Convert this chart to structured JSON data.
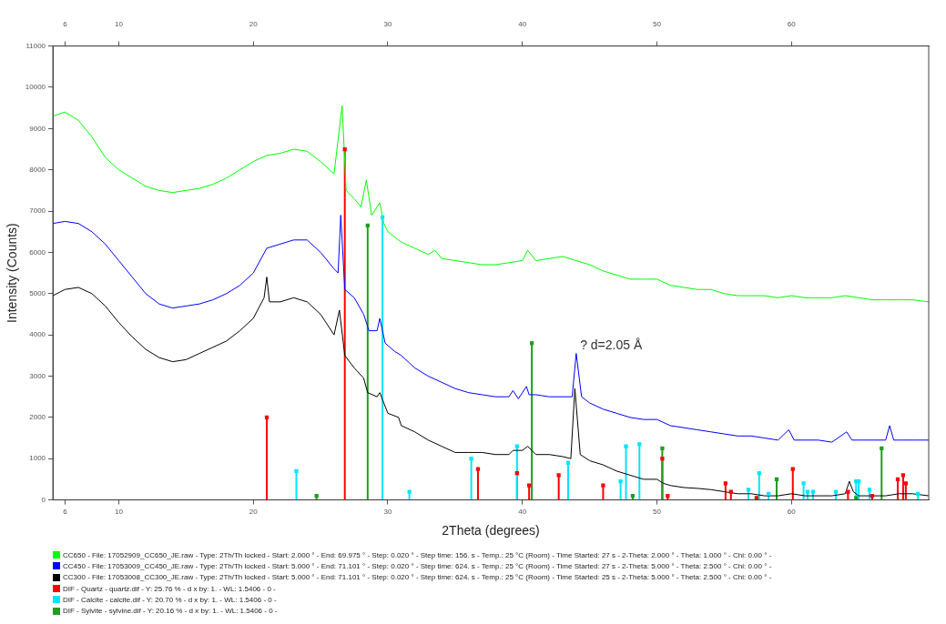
{
  "chart_data": {
    "type": "line",
    "xlabel": "2Theta (degrees)",
    "ylabel": "Intensity (Counts)",
    "xlim": [
      5.1,
      70.2
    ],
    "xticks": [
      6,
      10,
      20,
      30,
      40,
      50,
      60
    ],
    "x2lim": [
      5.1,
      70.2
    ],
    "x2ticks": [
      6,
      10,
      20,
      30,
      40,
      50,
      60
    ],
    "ylim": [
      0,
      11000
    ],
    "yticks": [
      0,
      1000,
      2000,
      3000,
      4000,
      5000,
      6000,
      7000,
      8000,
      9000,
      10000,
      11000
    ],
    "legend": "bottom",
    "annotations": [
      "? d=2.05 Å"
    ],
    "series": [
      {
        "name": "CC650 - File: 17052909_CC650_JE.raw - Type: 2Th/Th locked - Start: 2.000 ° - End: 69.975 ° - Step: 0.020 ° - Step time: 156. s - Temp.: 25 °C (Room) - Time Started: 27 s - 2-Theta: 2.000 ° - Theta: 1.000 ° - Chi: 0.00 ° -",
        "color": "#00ff00",
        "x": [
          5.1,
          6,
          7,
          8,
          9,
          10,
          11,
          12,
          13,
          14,
          15,
          16,
          17,
          18,
          19,
          20,
          21,
          22,
          23,
          24,
          25,
          26,
          26.6,
          26.9,
          27.5,
          28,
          28.4,
          28.8,
          29.4,
          29.7,
          30,
          31,
          32,
          33,
          33.5,
          34,
          35,
          36,
          37,
          38,
          39,
          40,
          40.4,
          41,
          42,
          43,
          44,
          45,
          46,
          47,
          48,
          49,
          50,
          51,
          52,
          53,
          54,
          55,
          56,
          57,
          58,
          59,
          60,
          61,
          62,
          63,
          64,
          65,
          66,
          67,
          68,
          69,
          70.2
        ],
        "values": [
          9300,
          9400,
          9200,
          8800,
          8300,
          8000,
          7800,
          7600,
          7500,
          7450,
          7500,
          7550,
          7650,
          7800,
          8000,
          8200,
          8350,
          8400,
          8500,
          8450,
          8200,
          7900,
          9550,
          7500,
          7300,
          7100,
          7750,
          6900,
          7200,
          6700,
          6500,
          6250,
          6100,
          5950,
          6050,
          5850,
          5800,
          5750,
          5700,
          5700,
          5750,
          5800,
          6050,
          5800,
          5850,
          5900,
          5800,
          5700,
          5550,
          5450,
          5350,
          5350,
          5350,
          5200,
          5150,
          5100,
          5100,
          5000,
          4950,
          4950,
          4950,
          4900,
          4950,
          4900,
          4900,
          4900,
          4950,
          4900,
          4850,
          4850,
          4850,
          4850,
          4800
        ]
      },
      {
        "name": "CC450 - File: 17053009_CC450_JE.raw - Type: 2Th/Th locked - Start: 5.000 ° - End: 71.101 ° - Step: 0.020 ° - Step time: 624. s - Temp.: 25 °C (Room) - Time Started: 27 s - 2-Theta: 5.000 ° - Theta: 2.500 ° - Chi: 0.00 ° -",
        "color": "#0000ff",
        "x": [
          5.1,
          6,
          7,
          8,
          9,
          10,
          11,
          12,
          13,
          14,
          15,
          16,
          17,
          18,
          19,
          20,
          21,
          22,
          23,
          24,
          25,
          26,
          26.3,
          26.5,
          26.8,
          27.5,
          28.2,
          28.6,
          29.2,
          29.4,
          29.8,
          30.5,
          31,
          32,
          33,
          34,
          35,
          36,
          37,
          38,
          39,
          39.3,
          39.7,
          40.3,
          40.5,
          41,
          42,
          43,
          43.7,
          44,
          44.4,
          45,
          46,
          47,
          48,
          49,
          50,
          51,
          52,
          53,
          54,
          55,
          56,
          57,
          58,
          59,
          59.8,
          60.2,
          61,
          62,
          63,
          64.1,
          64.5,
          65,
          66,
          67,
          67.3,
          67.6,
          68,
          69,
          70.2
        ],
        "values": [
          6700,
          6750,
          6700,
          6500,
          6200,
          5800,
          5400,
          5000,
          4750,
          4650,
          4700,
          4750,
          4850,
          5000,
          5200,
          5500,
          6100,
          6200,
          6300,
          6300,
          6000,
          5600,
          5500,
          6900,
          5100,
          4900,
          4500,
          4100,
          4100,
          4400,
          3800,
          3600,
          3500,
          3200,
          3000,
          2850,
          2700,
          2600,
          2550,
          2500,
          2500,
          2650,
          2450,
          2750,
          2550,
          2550,
          2500,
          2500,
          2500,
          3550,
          2500,
          2350,
          2200,
          2100,
          2000,
          1950,
          1950,
          1800,
          1750,
          1700,
          1650,
          1600,
          1550,
          1550,
          1500,
          1450,
          1700,
          1450,
          1450,
          1450,
          1400,
          1650,
          1450,
          1450,
          1450,
          1450,
          1800,
          1450,
          1450,
          1450,
          1450
        ]
      },
      {
        "name": "CC300 - File: 17053008_CC300_JE.raw - Type: 2Th/Th locked - Start: 5.000 ° - End: 71.101 ° - Step: 0.020 ° - Step time: 624. s - Temp.: 25 °C (Room) - Time Started: 25 s - 2-Theta: 5.000 ° - Theta: 2.500 ° - Chi: 0.00 ° -",
        "color": "#000000",
        "x": [
          5.1,
          6,
          7,
          8,
          9,
          10,
          11,
          12,
          13,
          14,
          15,
          16,
          17,
          18,
          19,
          20,
          20.8,
          21,
          21.2,
          22,
          23,
          24,
          25,
          26,
          26.4,
          26.8,
          27.5,
          28.2,
          28.5,
          29.2,
          29.4,
          30,
          30.8,
          31,
          32,
          33,
          34,
          35,
          36,
          37,
          38,
          39,
          39.3,
          40,
          40.4,
          41,
          42,
          43,
          43.6,
          43.9,
          44.3,
          45,
          46,
          47,
          48,
          49,
          50,
          50.5,
          51,
          52,
          53,
          54,
          55,
          56,
          57,
          58,
          59,
          60,
          61,
          62,
          63,
          64,
          64.3,
          64.6,
          65,
          66,
          67,
          68,
          69,
          70.2
        ],
        "values": [
          4950,
          5100,
          5150,
          5000,
          4700,
          4300,
          3950,
          3650,
          3450,
          3350,
          3400,
          3550,
          3700,
          3850,
          4100,
          4400,
          4900,
          5400,
          4800,
          4800,
          4900,
          4800,
          4500,
          4000,
          4600,
          3500,
          3200,
          2950,
          2600,
          2500,
          2600,
          2100,
          2000,
          1800,
          1650,
          1450,
          1300,
          1150,
          1150,
          1150,
          1100,
          1100,
          1200,
          1200,
          1300,
          1100,
          1100,
          1050,
          1000,
          2700,
          1100,
          950,
          850,
          700,
          600,
          500,
          500,
          400,
          350,
          300,
          280,
          250,
          200,
          150,
          150,
          100,
          100,
          150,
          100,
          100,
          100,
          150,
          450,
          200,
          100,
          100,
          100,
          150,
          150,
          100
        ]
      },
      {
        "name": "DIF - Quartz - quartz.dif - Y: 25.76 % - d x by: 1. - WL: 1.5406 - 0 -",
        "type": "lollipop",
        "marker": "square",
        "color": "#ff0000",
        "x": [
          21.0,
          26.8,
          36.7,
          39.6,
          40.5,
          42.7,
          46.0,
          50.4,
          50.8,
          55.1,
          55.5,
          57.4,
          60.1,
          64.2,
          66.0,
          67.9,
          68.3,
          68.5
        ],
        "values": [
          2000,
          8500,
          750,
          650,
          350,
          600,
          350,
          1000,
          100,
          400,
          200,
          50,
          750,
          200,
          100,
          500,
          600,
          400
        ]
      },
      {
        "name": "DIF - Calcite - calcite.dif - Y: 20.70 % - d x by: 1. - WL: 1.5406 - 0 -",
        "type": "lollipop",
        "marker": "square",
        "color": "#00e5ff",
        "x": [
          23.2,
          29.6,
          31.6,
          36.2,
          39.6,
          43.4,
          47.3,
          47.7,
          48.7,
          56.8,
          57.6,
          58.3,
          60.9,
          61.2,
          61.6,
          63.3,
          64.8,
          65.0,
          65.8,
          69.4
        ],
        "values": [
          700,
          6850,
          200,
          1000,
          1300,
          900,
          450,
          1300,
          1350,
          250,
          650,
          150,
          400,
          200,
          200,
          200,
          450,
          450,
          250,
          150
        ]
      },
      {
        "name": "DIF - Sylvite - sylvine.dif - Y: 20.16 % - d x by: 1. - WL: 1.5406 - 0 -",
        "type": "lollipop",
        "marker": "square",
        "color": "#1f9e1f",
        "x": [
          24.7,
          28.5,
          40.7,
          48.2,
          50.4,
          58.9,
          64.8,
          66.7
        ],
        "values": [
          100,
          6650,
          3800,
          100,
          1250,
          500,
          50,
          1250
        ]
      }
    ]
  }
}
